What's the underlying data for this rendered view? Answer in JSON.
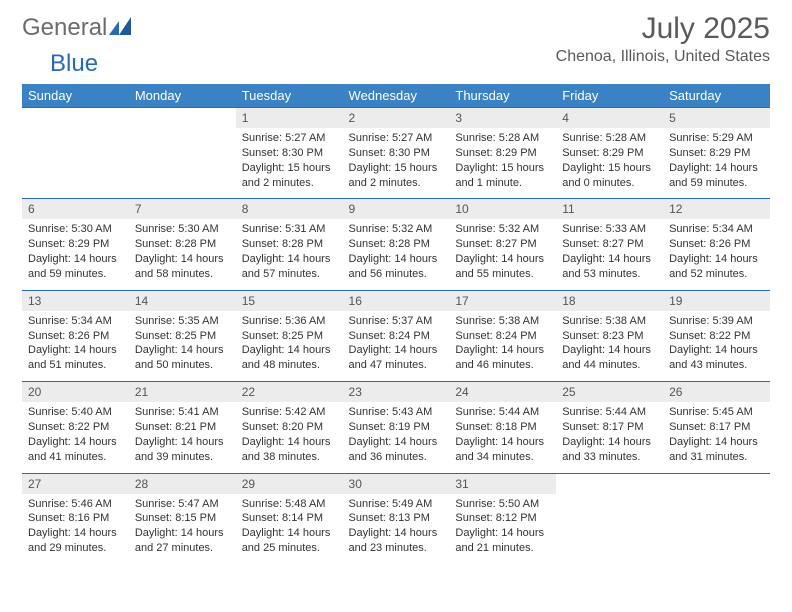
{
  "brand": {
    "general": "General",
    "blue": "Blue"
  },
  "title": "July 2025",
  "location": "Chenoa, Illinois, United States",
  "colors": {
    "header_bg": "#3a82c4",
    "header_text": "#ffffff",
    "daynum_bg": "#ececec",
    "row_border": "#2a6bb0",
    "title_text": "#5a5a5a",
    "body_text": "#333333",
    "logo_gray": "#6c6c6c",
    "logo_blue": "#2a6bb0"
  },
  "typography": {
    "title_fontsize": 30,
    "location_fontsize": 16,
    "dayhead_fontsize": 13,
    "daynum_fontsize": 12,
    "body_fontsize": 11
  },
  "day_headers": [
    "Sunday",
    "Monday",
    "Tuesday",
    "Wednesday",
    "Thursday",
    "Friday",
    "Saturday"
  ],
  "weeks": [
    [
      null,
      null,
      {
        "n": "1",
        "sr": "5:27 AM",
        "ss": "8:30 PM",
        "dl": "15 hours and 2 minutes."
      },
      {
        "n": "2",
        "sr": "5:27 AM",
        "ss": "8:30 PM",
        "dl": "15 hours and 2 minutes."
      },
      {
        "n": "3",
        "sr": "5:28 AM",
        "ss": "8:29 PM",
        "dl": "15 hours and 1 minute."
      },
      {
        "n": "4",
        "sr": "5:28 AM",
        "ss": "8:29 PM",
        "dl": "15 hours and 0 minutes."
      },
      {
        "n": "5",
        "sr": "5:29 AM",
        "ss": "8:29 PM",
        "dl": "14 hours and 59 minutes."
      }
    ],
    [
      {
        "n": "6",
        "sr": "5:30 AM",
        "ss": "8:29 PM",
        "dl": "14 hours and 59 minutes."
      },
      {
        "n": "7",
        "sr": "5:30 AM",
        "ss": "8:28 PM",
        "dl": "14 hours and 58 minutes."
      },
      {
        "n": "8",
        "sr": "5:31 AM",
        "ss": "8:28 PM",
        "dl": "14 hours and 57 minutes."
      },
      {
        "n": "9",
        "sr": "5:32 AM",
        "ss": "8:28 PM",
        "dl": "14 hours and 56 minutes."
      },
      {
        "n": "10",
        "sr": "5:32 AM",
        "ss": "8:27 PM",
        "dl": "14 hours and 55 minutes."
      },
      {
        "n": "11",
        "sr": "5:33 AM",
        "ss": "8:27 PM",
        "dl": "14 hours and 53 minutes."
      },
      {
        "n": "12",
        "sr": "5:34 AM",
        "ss": "8:26 PM",
        "dl": "14 hours and 52 minutes."
      }
    ],
    [
      {
        "n": "13",
        "sr": "5:34 AM",
        "ss": "8:26 PM",
        "dl": "14 hours and 51 minutes."
      },
      {
        "n": "14",
        "sr": "5:35 AM",
        "ss": "8:25 PM",
        "dl": "14 hours and 50 minutes."
      },
      {
        "n": "15",
        "sr": "5:36 AM",
        "ss": "8:25 PM",
        "dl": "14 hours and 48 minutes."
      },
      {
        "n": "16",
        "sr": "5:37 AM",
        "ss": "8:24 PM",
        "dl": "14 hours and 47 minutes."
      },
      {
        "n": "17",
        "sr": "5:38 AM",
        "ss": "8:24 PM",
        "dl": "14 hours and 46 minutes."
      },
      {
        "n": "18",
        "sr": "5:38 AM",
        "ss": "8:23 PM",
        "dl": "14 hours and 44 minutes."
      },
      {
        "n": "19",
        "sr": "5:39 AM",
        "ss": "8:22 PM",
        "dl": "14 hours and 43 minutes."
      }
    ],
    [
      {
        "n": "20",
        "sr": "5:40 AM",
        "ss": "8:22 PM",
        "dl": "14 hours and 41 minutes."
      },
      {
        "n": "21",
        "sr": "5:41 AM",
        "ss": "8:21 PM",
        "dl": "14 hours and 39 minutes."
      },
      {
        "n": "22",
        "sr": "5:42 AM",
        "ss": "8:20 PM",
        "dl": "14 hours and 38 minutes."
      },
      {
        "n": "23",
        "sr": "5:43 AM",
        "ss": "8:19 PM",
        "dl": "14 hours and 36 minutes."
      },
      {
        "n": "24",
        "sr": "5:44 AM",
        "ss": "8:18 PM",
        "dl": "14 hours and 34 minutes."
      },
      {
        "n": "25",
        "sr": "5:44 AM",
        "ss": "8:17 PM",
        "dl": "14 hours and 33 minutes."
      },
      {
        "n": "26",
        "sr": "5:45 AM",
        "ss": "8:17 PM",
        "dl": "14 hours and 31 minutes."
      }
    ],
    [
      {
        "n": "27",
        "sr": "5:46 AM",
        "ss": "8:16 PM",
        "dl": "14 hours and 29 minutes."
      },
      {
        "n": "28",
        "sr": "5:47 AM",
        "ss": "8:15 PM",
        "dl": "14 hours and 27 minutes."
      },
      {
        "n": "29",
        "sr": "5:48 AM",
        "ss": "8:14 PM",
        "dl": "14 hours and 25 minutes."
      },
      {
        "n": "30",
        "sr": "5:49 AM",
        "ss": "8:13 PM",
        "dl": "14 hours and 23 minutes."
      },
      {
        "n": "31",
        "sr": "5:50 AM",
        "ss": "8:12 PM",
        "dl": "14 hours and 21 minutes."
      },
      null,
      null
    ]
  ],
  "labels": {
    "sunrise": "Sunrise:",
    "sunset": "Sunset:",
    "daylight": "Daylight:"
  }
}
